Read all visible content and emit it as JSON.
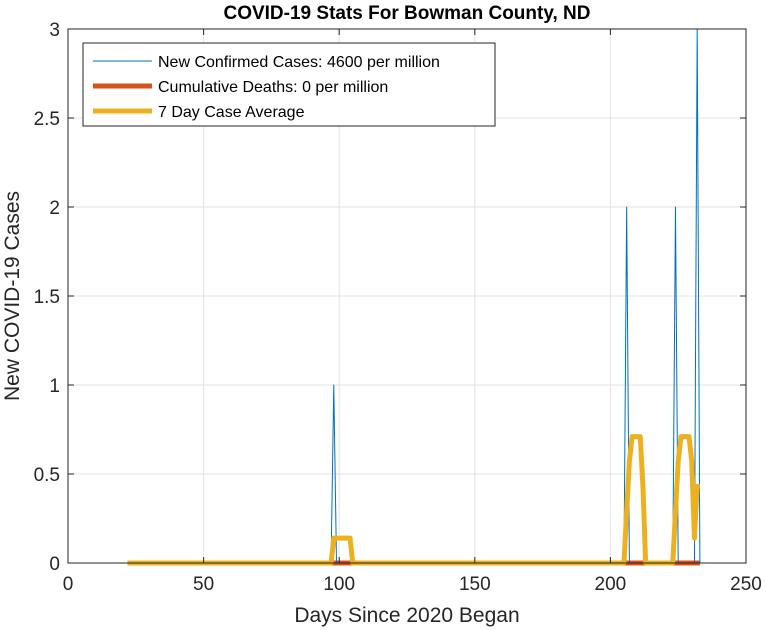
{
  "chart_data": {
    "type": "line",
    "title": "COVID-19 Stats For Bowman County, ND",
    "xlabel": "Days Since 2020 Began",
    "ylabel": "New COVID-19 Cases",
    "xlim": [
      0,
      250
    ],
    "ylim": [
      0,
      3
    ],
    "xticks": [
      0,
      50,
      100,
      150,
      200,
      250
    ],
    "yticks": [
      0,
      0.5,
      1,
      1.5,
      2,
      2.5,
      3
    ],
    "xtick_labels": [
      "0",
      "50",
      "100",
      "150",
      "200",
      "250"
    ],
    "ytick_labels": [
      "0",
      "0.5",
      "1",
      "1.5",
      "2",
      "2.5",
      "3"
    ],
    "grid": true,
    "legend_position": "top-left",
    "series": [
      {
        "name": "New Confirmed Cases: 4600 per million",
        "color": "#0072BD",
        "line_width": "thin",
        "x": [
          22,
          97,
          98,
          99,
          205,
          206,
          207,
          223,
          224,
          225,
          231,
          232,
          233
        ],
        "y": [
          0,
          0,
          1,
          0,
          0,
          2,
          0,
          0,
          2,
          0,
          0,
          3,
          0
        ]
      },
      {
        "name": "Cumulative Deaths: 0 per million",
        "color": "#D95319",
        "line_width": "thick",
        "x": [
          22,
          233
        ],
        "y": [
          0,
          0
        ]
      },
      {
        "name": "7 Day Case Average",
        "color": "#EDB120",
        "line_width": "thick",
        "x": [
          22,
          97,
          98,
          99,
          104,
          105,
          205,
          206,
          207,
          208,
          211,
          212,
          213,
          223,
          224,
          225,
          226,
          229,
          230,
          231,
          232,
          233
        ],
        "y": [
          0,
          0,
          0.14,
          0.14,
          0.14,
          0,
          0,
          0.29,
          0.57,
          0.71,
          0.71,
          0.43,
          0,
          0,
          0.29,
          0.57,
          0.71,
          0.71,
          0.57,
          0.14,
          0.43,
          0.43
        ]
      }
    ]
  }
}
